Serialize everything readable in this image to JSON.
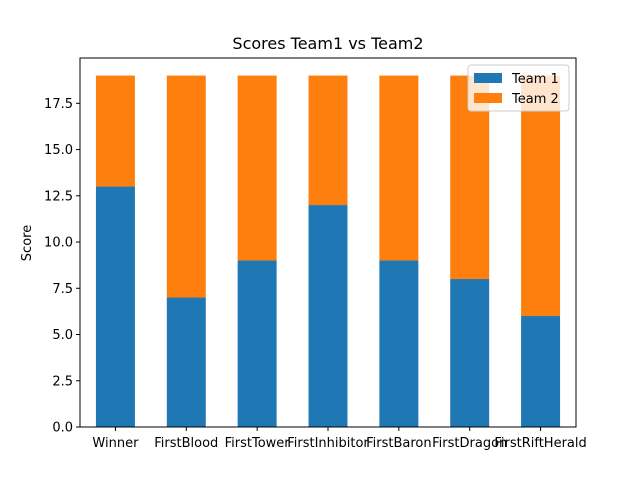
{
  "chart_data": {
    "type": "bar",
    "stacked": true,
    "title": "Scores Team1 vs Team2",
    "xlabel": "",
    "ylabel": "Score",
    "ylim": [
      0,
      19.95
    ],
    "yticks": [
      "0.0",
      "2.5",
      "5.0",
      "7.5",
      "10.0",
      "12.5",
      "15.0",
      "17.5"
    ],
    "ytick_values": [
      0,
      2.5,
      5,
      7.5,
      10,
      12.5,
      15,
      17.5
    ],
    "categories": [
      "Winner",
      "FirstBlood",
      "FirstTower",
      "FirstInhibitor",
      "FirstBaron",
      "FirstDragon",
      "FirstRiftHerald"
    ],
    "series": [
      {
        "name": "Team 1",
        "color": "#1f77b4",
        "values": [
          13,
          7,
          9,
          12,
          9,
          8,
          6
        ]
      },
      {
        "name": "Team 2",
        "color": "#ff7f0e",
        "values": [
          6,
          12,
          10,
          7,
          10,
          11,
          13
        ]
      }
    ],
    "legend_position": "top-right",
    "grid": false
  }
}
